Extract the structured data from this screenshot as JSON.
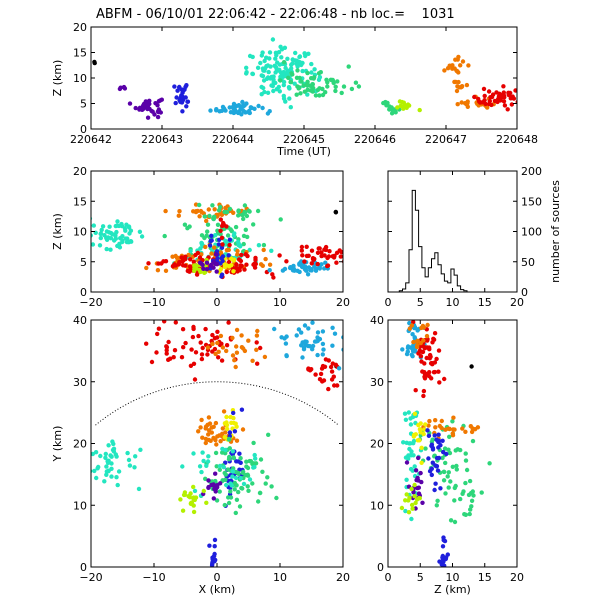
{
  "title": "ABFM - 06/10/01 22:06:42 - 22:06:48 - nb loc.=    1031",
  "colors": {
    "black": "#000000",
    "purple": "#5a00a8",
    "blue": "#1f1fdc",
    "skyblue": "#1ea7dc",
    "aqua": "#23e6c0",
    "green": "#2ed67a",
    "lime": "#b4f000",
    "yellow": "#f0f000",
    "orange": "#f07800",
    "red": "#e60000"
  },
  "chart_data": [
    {
      "id": "time-height",
      "type": "scatter",
      "xlabel": "Time (UT)",
      "ylabel": "Z (km)",
      "xlim": [
        0,
        6
      ],
      "ylim": [
        0,
        20
      ],
      "xtick_values": [
        0,
        1,
        2,
        3,
        4,
        5,
        6
      ],
      "xtick_labels": [
        "220642",
        "220643",
        "220644",
        "220645",
        "220646",
        "220647",
        "220648"
      ],
      "ytick_values": [
        0,
        5,
        10,
        15,
        20
      ],
      "ytick_labels": [
        "0",
        "5",
        "10",
        "15",
        "20"
      ],
      "clusters": [
        {
          "color": "black",
          "x": 0.05,
          "y": 13,
          "sx": 0.01,
          "sy": 0.2,
          "n": 2
        },
        {
          "color": "purple",
          "x": 0.45,
          "y": 8,
          "sx": 0.02,
          "sy": 0.4,
          "n": 4
        },
        {
          "color": "purple",
          "x": 0.8,
          "y": 4.5,
          "sx": 0.1,
          "sy": 0.8,
          "n": 40
        },
        {
          "color": "blue",
          "x": 1.28,
          "y": 6,
          "sx": 0.05,
          "sy": 1.2,
          "n": 25
        },
        {
          "color": "blue",
          "x": 1.28,
          "y": 8.2,
          "sx": 0.03,
          "sy": 0.3,
          "n": 6
        },
        {
          "color": "skyblue",
          "x": 2.05,
          "y": 4,
          "sx": 0.18,
          "sy": 0.6,
          "n": 45
        },
        {
          "color": "aqua",
          "x": 2.7,
          "y": 11,
          "sx": 0.25,
          "sy": 2.2,
          "n": 130
        },
        {
          "color": "green",
          "x": 3.2,
          "y": 9,
          "sx": 0.25,
          "sy": 1.5,
          "n": 60
        },
        {
          "color": "green",
          "x": 4.22,
          "y": 4.3,
          "sx": 0.06,
          "sy": 0.5,
          "n": 15
        },
        {
          "color": "lime",
          "x": 4.42,
          "y": 4.6,
          "sx": 0.07,
          "sy": 0.5,
          "n": 12
        },
        {
          "color": "orange",
          "x": 5.15,
          "y": 12.5,
          "sx": 0.06,
          "sy": 0.8,
          "n": 15
        },
        {
          "color": "orange",
          "x": 5.2,
          "y": 8.5,
          "sx": 0.05,
          "sy": 0.6,
          "n": 10
        },
        {
          "color": "orange",
          "x": 5.35,
          "y": 5,
          "sx": 0.15,
          "sy": 0.6,
          "n": 18
        },
        {
          "color": "red",
          "x": 5.75,
          "y": 5.8,
          "sx": 0.18,
          "sy": 1.0,
          "n": 45
        }
      ]
    },
    {
      "id": "x-z",
      "type": "scatter",
      "xlabel": "",
      "ylabel": "Z (km)",
      "xlim": [
        -20,
        20
      ],
      "ylim": [
        0,
        20
      ],
      "xtick_values": [
        -20,
        -10,
        0,
        10,
        20
      ],
      "xtick_labels": [
        "−20",
        "−10",
        "0",
        "10",
        "20"
      ],
      "ytick_values": [
        0,
        5,
        10,
        15,
        20
      ],
      "ytick_labels": [
        "0",
        "5",
        "10",
        "15",
        "20"
      ],
      "clusters": [
        {
          "color": "black",
          "x": 18.8,
          "y": 13,
          "sx": 0.1,
          "sy": 0.1,
          "n": 2
        },
        {
          "color": "aqua",
          "x": -16,
          "y": 9.5,
          "sx": 2.2,
          "sy": 1.2,
          "n": 60
        },
        {
          "color": "orange",
          "x": -1,
          "y": 13.2,
          "sx": 3,
          "sy": 0.6,
          "n": 40
        },
        {
          "color": "green",
          "x": 3,
          "y": 13.3,
          "sx": 2.2,
          "sy": 0.6,
          "n": 25
        },
        {
          "color": "green",
          "x": 1,
          "y": 9,
          "sx": 3,
          "sy": 1.8,
          "n": 60
        },
        {
          "color": "aqua",
          "x": 0,
          "y": 7,
          "sx": 3.5,
          "sy": 1.5,
          "n": 50
        },
        {
          "color": "orange",
          "x": -2,
          "y": 5,
          "sx": 5,
          "sy": 1.2,
          "n": 60
        },
        {
          "color": "red",
          "x": -1,
          "y": 4.5,
          "sx": 5,
          "sy": 1,
          "n": 80
        },
        {
          "color": "yellow",
          "x": 1,
          "y": 4.5,
          "sx": 1.2,
          "sy": 0.6,
          "n": 20
        },
        {
          "color": "lime",
          "x": -3,
          "y": 4,
          "sx": 1,
          "sy": 0.5,
          "n": 15
        },
        {
          "color": "blue",
          "x": 0.5,
          "y": 6,
          "sx": 1,
          "sy": 1.5,
          "n": 25
        },
        {
          "color": "purple",
          "x": -1.2,
          "y": 4.5,
          "sx": 1,
          "sy": 0.8,
          "n": 15
        },
        {
          "color": "skyblue",
          "x": 14,
          "y": 4,
          "sx": 2,
          "sy": 0.6,
          "n": 40
        },
        {
          "color": "red",
          "x": 17,
          "y": 6,
          "sx": 2.2,
          "sy": 1,
          "n": 45
        },
        {
          "color": "red",
          "x": 1,
          "y": 10.5,
          "sx": 0.5,
          "sy": 1.2,
          "n": 8
        }
      ]
    },
    {
      "id": "histogram",
      "type": "bar",
      "xlabel": "",
      "ylabel": "number of sources",
      "xlim": [
        0,
        20
      ],
      "ylim": [
        0,
        200
      ],
      "xtick_values": [
        0,
        5,
        10,
        15,
        20
      ],
      "xtick_labels": [
        "0",
        "5",
        "10",
        "15",
        "20"
      ],
      "ytick_values": [
        0,
        50,
        100,
        150,
        200
      ],
      "ytick_labels": [
        "0",
        "50",
        "100",
        "150",
        "200"
      ],
      "bin_start": 1.75,
      "bin_width": 0.5,
      "values": [
        2,
        5,
        15,
        70,
        168,
        135,
        75,
        40,
        25,
        40,
        55,
        65,
        45,
        30,
        18,
        15,
        38,
        28,
        10,
        4,
        2
      ]
    },
    {
      "id": "x-y",
      "type": "scatter",
      "xlabel": "X (km)",
      "ylabel": "Y (km)",
      "xlim": [
        -20,
        20
      ],
      "ylim": [
        0,
        40
      ],
      "xtick_values": [
        -20,
        -10,
        0,
        10,
        20
      ],
      "xtick_labels": [
        "−20",
        "−10",
        "0",
        "10",
        "20"
      ],
      "ytick_values": [
        0,
        10,
        20,
        30,
        40
      ],
      "ytick_labels": [
        "0",
        "10",
        "20",
        "30",
        "40"
      ],
      "range_ring_km": 30,
      "clusters": [
        {
          "color": "black",
          "x": 19,
          "y": 32.5,
          "sx": 0.1,
          "sy": 0.1,
          "n": 1
        },
        {
          "color": "red",
          "x": -3,
          "y": 36,
          "sx": 4,
          "sy": 2.2,
          "n": 60
        },
        {
          "color": "orange",
          "x": 4,
          "y": 35,
          "sx": 2.5,
          "sy": 2,
          "n": 25
        },
        {
          "color": "red",
          "x": 17,
          "y": 31,
          "sx": 2,
          "sy": 1.5,
          "n": 25
        },
        {
          "color": "skyblue",
          "x": 15,
          "y": 37,
          "sx": 3,
          "sy": 2,
          "n": 45
        },
        {
          "color": "aqua",
          "x": -17,
          "y": 17,
          "sx": 2.2,
          "sy": 2,
          "n": 45
        },
        {
          "color": "orange",
          "x": 0,
          "y": 22,
          "sx": 2,
          "sy": 1.2,
          "n": 40
        },
        {
          "color": "yellow",
          "x": 2,
          "y": 23,
          "sx": 1,
          "sy": 1.2,
          "n": 18
        },
        {
          "color": "blue",
          "x": 2.5,
          "y": 17,
          "sx": 0.8,
          "sy": 4,
          "n": 35
        },
        {
          "color": "green",
          "x": 3,
          "y": 14.5,
          "sx": 2.5,
          "sy": 3,
          "n": 80
        },
        {
          "color": "aqua",
          "x": 0,
          "y": 16,
          "sx": 3,
          "sy": 2,
          "n": 30
        },
        {
          "color": "purple",
          "x": -1,
          "y": 13,
          "sx": 1,
          "sy": 1.5,
          "n": 15
        },
        {
          "color": "lime",
          "x": -4,
          "y": 11,
          "sx": 1,
          "sy": 1,
          "n": 20
        },
        {
          "color": "blue",
          "x": -0.5,
          "y": 2,
          "sx": 0.3,
          "sy": 1.5,
          "n": 15
        }
      ]
    },
    {
      "id": "z-y",
      "type": "scatter",
      "xlabel": "Z (km)",
      "ylabel": "",
      "xlim": [
        0,
        20
      ],
      "ylim": [
        0,
        40
      ],
      "xtick_values": [
        0,
        5,
        10,
        15,
        20
      ],
      "xtick_labels": [
        "0",
        "5",
        "10",
        "15",
        "20"
      ],
      "ytick_values": [
        0,
        10,
        20,
        30,
        40
      ],
      "ytick_labels": [
        "0",
        "10",
        "20",
        "30",
        "40"
      ],
      "clusters": [
        {
          "color": "black",
          "x": 13,
          "y": 32.5,
          "sx": 0.1,
          "sy": 0.1,
          "n": 1
        },
        {
          "color": "skyblue",
          "x": 4,
          "y": 37,
          "sx": 0.8,
          "sy": 2,
          "n": 35
        },
        {
          "color": "red",
          "x": 6,
          "y": 34,
          "sx": 1,
          "sy": 3,
          "n": 60
        },
        {
          "color": "orange",
          "x": 5,
          "y": 37,
          "sx": 0.6,
          "sy": 1.5,
          "n": 15
        },
        {
          "color": "aqua",
          "x": 3.5,
          "y": 19,
          "sx": 0.6,
          "sy": 4,
          "n": 40
        },
        {
          "color": "green",
          "x": 9,
          "y": 18,
          "sx": 2,
          "sy": 3,
          "n": 50
        },
        {
          "color": "orange",
          "x": 10,
          "y": 22.5,
          "sx": 2.5,
          "sy": 0.8,
          "n": 25
        },
        {
          "color": "yellow",
          "x": 5,
          "y": 22,
          "sx": 0.5,
          "sy": 2,
          "n": 15
        },
        {
          "color": "blue",
          "x": 7.5,
          "y": 18,
          "sx": 0.8,
          "sy": 3,
          "n": 30
        },
        {
          "color": "purple",
          "x": 4.5,
          "y": 14,
          "sx": 0.5,
          "sy": 2,
          "n": 20
        },
        {
          "color": "lime",
          "x": 3.5,
          "y": 11,
          "sx": 0.6,
          "sy": 1,
          "n": 15
        },
        {
          "color": "green",
          "x": 11.5,
          "y": 11,
          "sx": 1.5,
          "sy": 2,
          "n": 20
        },
        {
          "color": "blue",
          "x": 8.5,
          "y": 2,
          "sx": 0.4,
          "sy": 1.3,
          "n": 15
        }
      ]
    }
  ]
}
